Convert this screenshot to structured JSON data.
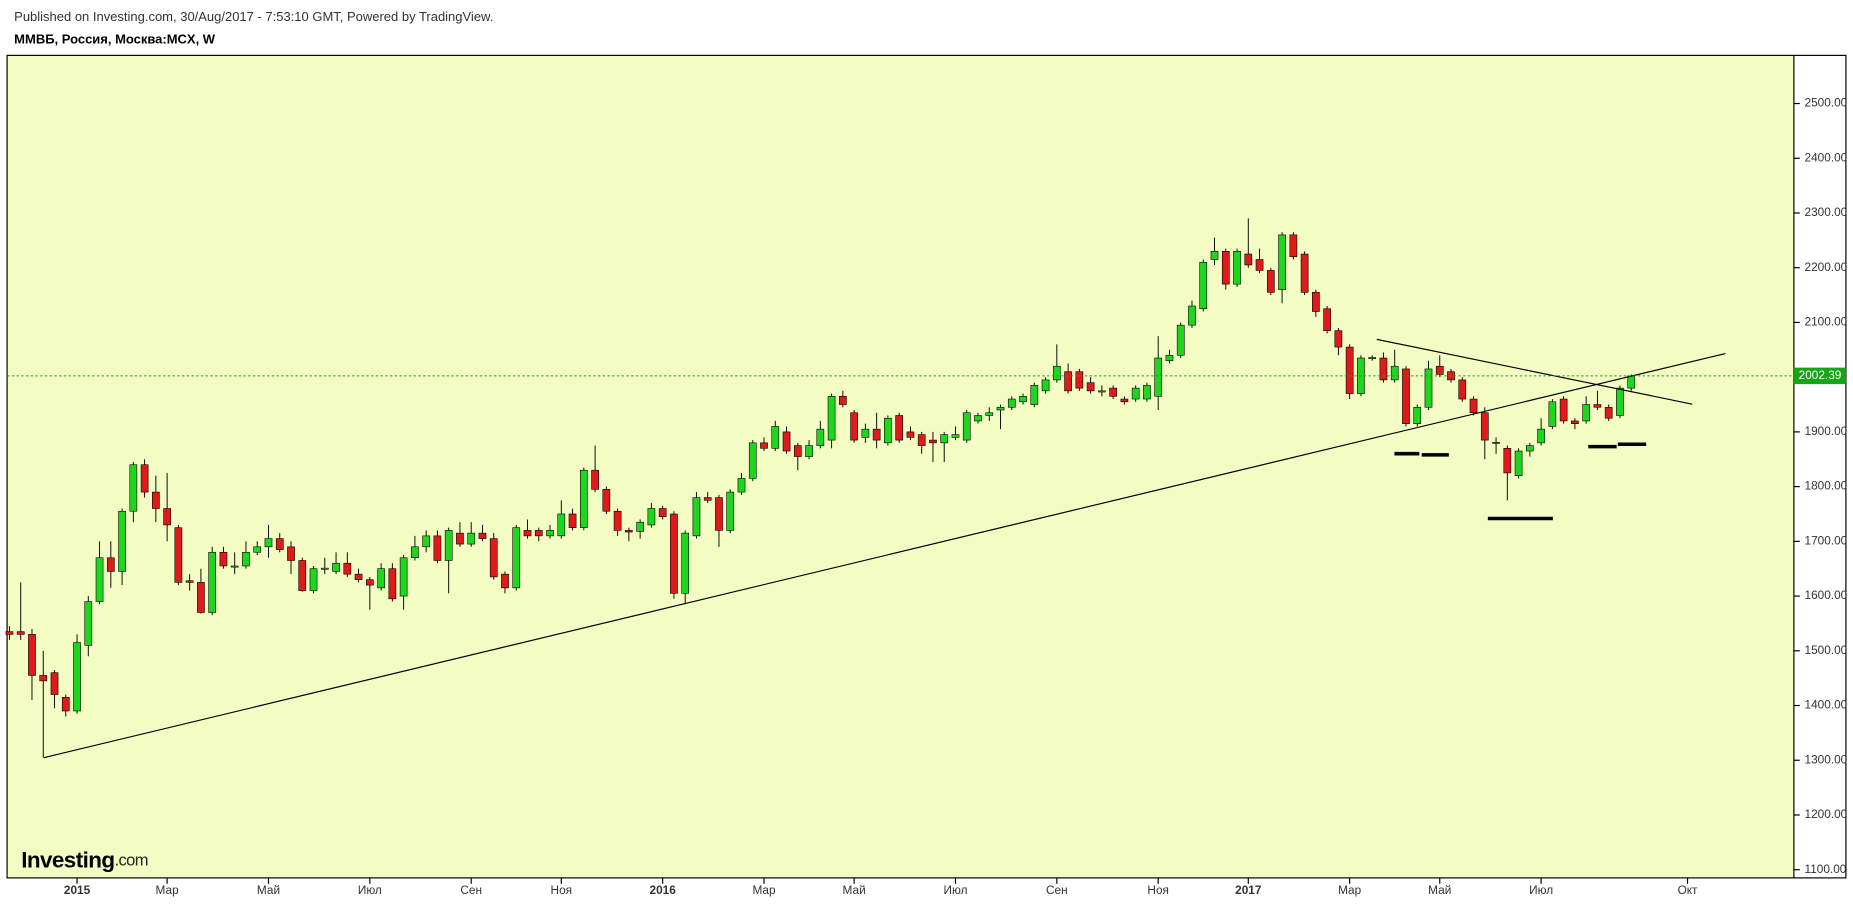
{
  "header": {
    "published": "Published on Investing.com, 30/Aug/2017 - 7:53:10 GMT, Powered by TradingView.",
    "symbol": "ММВБ, Россия, Москва:MCX, W"
  },
  "logo": {
    "brand": "Investing",
    "suffix": ".com"
  },
  "chart_data": {
    "type": "candlestick",
    "categories": [
      null,
      null,
      null,
      null,
      null,
      null,
      "2015",
      null,
      null,
      null,
      null,
      null,
      null,
      null,
      "Мар",
      null,
      null,
      null,
      null,
      null,
      null,
      null,
      null,
      "Май",
      null,
      null,
      null,
      null,
      null,
      null,
      null,
      null,
      "Июл",
      null,
      null,
      null,
      null,
      null,
      null,
      null,
      null,
      "Сен",
      null,
      null,
      null,
      null,
      null,
      null,
      null,
      "Ноя",
      null,
      null,
      null,
      null,
      null,
      null,
      null,
      null,
      "2016",
      null,
      null,
      null,
      null,
      null,
      null,
      null,
      null,
      "Мар",
      null,
      null,
      null,
      null,
      null,
      null,
      null,
      "Май",
      null,
      null,
      null,
      null,
      null,
      null,
      null,
      null,
      "Июл",
      null,
      null,
      null,
      null,
      null,
      null,
      null,
      null,
      "Сен",
      null,
      null,
      null,
      null,
      null,
      null,
      null,
      null,
      "Ноя",
      null,
      null,
      null,
      null,
      null,
      null,
      null,
      "2017",
      null,
      null,
      null,
      null,
      null,
      null,
      null,
      null,
      "Мар",
      null,
      null,
      null,
      null,
      null,
      null,
      null,
      "Май",
      null,
      null,
      null,
      null,
      null,
      null,
      null,
      null,
      "Июл",
      null,
      null,
      null,
      null,
      null,
      null,
      null,
      null,
      null,
      null,
      null,
      null,
      "Окт",
      null,
      null,
      null,
      null,
      null,
      null,
      null,
      null,
      null
    ],
    "open": [
      1535,
      1535,
      1530,
      1455,
      1460,
      1415,
      1390,
      1510,
      1590,
      1670,
      1645,
      1755,
      1840,
      1790,
      1760,
      1725,
      1628,
      1625,
      1570,
      1680,
      1655,
      1655,
      1680,
      1690,
      1705,
      1690,
      1665,
      1610,
      1650,
      1645,
      1660,
      1640,
      1630,
      1615,
      1650,
      1600,
      1670,
      1690,
      1710,
      1665,
      1715,
      1695,
      1715,
      1705,
      1640,
      1615,
      1720,
      1720,
      1710,
      1710,
      1750,
      1725,
      1830,
      1795,
      1755,
      1720,
      1718,
      1730,
      1760,
      1750,
      1605,
      1710,
      1780,
      1780,
      1720,
      1790,
      1815,
      1880,
      1870,
      1900,
      1875,
      1855,
      1875,
      1885,
      1965,
      1935,
      1890,
      1905,
      1880,
      1930,
      1900,
      1895,
      1885,
      1880,
      1890,
      1885,
      1920,
      1930,
      1940,
      1945,
      1955,
      1950,
      1975,
      1995,
      2010,
      2010,
      1990,
      1973,
      1980,
      1960,
      1960,
      1960,
      1965,
      2030,
      2040,
      2095,
      2125,
      2215,
      2230,
      2170,
      2225,
      2215,
      2195,
      2160,
      2260,
      2225,
      2155,
      2125,
      2085,
      2055,
      1970,
      2035,
      2035,
      1995,
      2015,
      1915,
      1945,
      2020,
      2010,
      1995,
      1960,
      1935,
      1880,
      1870,
      1820,
      1865,
      1880,
      1910,
      1960,
      1920,
      1920,
      1950,
      1945,
      1930,
      1980,
      null,
      null,
      null,
      null,
      null,
      null,
      null,
      null,
      null,
      null,
      null,
      null,
      null,
      null
    ],
    "high": [
      1545,
      1625,
      1540,
      1500,
      1465,
      1420,
      1530,
      1600,
      1700,
      1700,
      1760,
      1845,
      1850,
      1820,
      1825,
      1730,
      1640,
      1650,
      1690,
      1690,
      1680,
      1700,
      1700,
      1730,
      1715,
      1700,
      1670,
      1655,
      1670,
      1680,
      1680,
      1650,
      1635,
      1660,
      1660,
      1675,
      1710,
      1720,
      1720,
      1725,
      1735,
      1735,
      1730,
      1715,
      1645,
      1730,
      1740,
      1725,
      1730,
      1775,
      1760,
      1835,
      1875,
      1800,
      1760,
      1725,
      1740,
      1770,
      1765,
      1755,
      1720,
      1790,
      1790,
      1785,
      1795,
      1825,
      1885,
      1890,
      1920,
      1910,
      1880,
      1885,
      1920,
      1970,
      1975,
      1940,
      1915,
      1935,
      1930,
      1935,
      1910,
      1900,
      1900,
      1900,
      1910,
      1940,
      1935,
      1945,
      1950,
      1965,
      1970,
      1990,
      2000,
      2060,
      2025,
      2015,
      2000,
      1985,
      1985,
      1965,
      1985,
      1990,
      2075,
      2050,
      2100,
      2140,
      2215,
      2255,
      2235,
      2235,
      2290,
      2235,
      2200,
      2265,
      2265,
      2230,
      2160,
      2130,
      2090,
      2060,
      2040,
      2040,
      2045,
      2050,
      2020,
      1950,
      2030,
      2040,
      2015,
      2000,
      1965,
      1945,
      1890,
      1875,
      1870,
      1880,
      1925,
      1960,
      1965,
      1925,
      1965,
      1975,
      1950,
      1985,
      2005,
      null,
      null,
      null,
      null,
      null,
      null,
      null,
      null,
      null,
      null,
      null,
      null,
      null,
      null
    ],
    "low": [
      1520,
      1520,
      1410,
      1305,
      1395,
      1380,
      1385,
      1490,
      1585,
      1615,
      1620,
      1735,
      1780,
      1735,
      1700,
      1620,
      1610,
      1568,
      1565,
      1650,
      1640,
      1650,
      1675,
      1670,
      1680,
      1640,
      1608,
      1605,
      1640,
      1640,
      1635,
      1625,
      1575,
      1610,
      1590,
      1575,
      1665,
      1680,
      1660,
      1605,
      1690,
      1690,
      1700,
      1630,
      1605,
      1610,
      1705,
      1700,
      1705,
      1705,
      1720,
      1720,
      1790,
      1750,
      1710,
      1700,
      1705,
      1725,
      1740,
      1595,
      1585,
      1705,
      1770,
      1690,
      1715,
      1785,
      1810,
      1865,
      1865,
      1860,
      1830,
      1850,
      1870,
      1870,
      1945,
      1880,
      1880,
      1870,
      1875,
      1880,
      1885,
      1860,
      1845,
      1845,
      1885,
      1880,
      1915,
      1920,
      1905,
      1940,
      1950,
      1945,
      1970,
      1990,
      1970,
      1975,
      1970,
      1965,
      1960,
      1950,
      1955,
      1955,
      1940,
      2025,
      2035,
      2090,
      2120,
      2205,
      2160,
      2165,
      2200,
      2190,
      2150,
      2135,
      2215,
      2150,
      2110,
      2080,
      2040,
      1960,
      1965,
      2030,
      1990,
      1990,
      1910,
      1910,
      1940,
      2000,
      1990,
      1955,
      1930,
      1850,
      1860,
      1775,
      1815,
      1855,
      1875,
      1905,
      1915,
      1905,
      1915,
      1940,
      1920,
      1925,
      1975,
      null,
      null,
      null,
      null,
      null,
      null,
      null,
      null,
      null,
      null,
      null,
      null,
      null,
      null
    ],
    "close": [
      1530,
      1530,
      1455,
      1445,
      1420,
      1390,
      1515,
      1590,
      1670,
      1645,
      1755,
      1840,
      1790,
      1760,
      1730,
      1625,
      1625,
      1570,
      1680,
      1655,
      1655,
      1680,
      1690,
      1705,
      1685,
      1665,
      1610,
      1650,
      1651,
      1660,
      1640,
      1630,
      1620,
      1650,
      1595,
      1670,
      1690,
      1710,
      1665,
      1720,
      1695,
      1715,
      1705,
      1635,
      1615,
      1725,
      1710,
      1710,
      1720,
      1750,
      1725,
      1830,
      1795,
      1755,
      1720,
      1717,
      1735,
      1760,
      1745,
      1605,
      1715,
      1780,
      1775,
      1720,
      1790,
      1815,
      1880,
      1870,
      1910,
      1865,
      1855,
      1875,
      1905,
      1965,
      1950,
      1885,
      1905,
      1885,
      1925,
      1885,
      1890,
      1875,
      1880,
      1895,
      1895,
      1935,
      1930,
      1935,
      1945,
      1960,
      1965,
      1985,
      1995,
      2020,
      1975,
      1980,
      1975,
      1975,
      1965,
      1955,
      1980,
      1985,
      2035,
      2040,
      2095,
      2130,
      2210,
      2230,
      2170,
      2230,
      2205,
      2195,
      2155,
      2260,
      2220,
      2155,
      2120,
      2085,
      2055,
      1970,
      2035,
      2036,
      1995,
      2020,
      1915,
      1945,
      2015,
      2005,
      1995,
      1960,
      1935,
      1885,
      1881,
      1825,
      1865,
      1875,
      1905,
      1955,
      1920,
      1915,
      1950,
      1945,
      1925,
      1980,
      2002.39,
      null,
      null,
      null,
      null,
      null,
      null,
      null,
      null,
      null,
      null,
      null,
      null,
      null,
      null
    ],
    "up_color": "#1ed61e",
    "down_color": "#e01a1a",
    "background": "#f3fdc3",
    "ylim": [
      1085,
      2588
    ],
    "yticks": [
      {
        "value": 1100,
        "label": "1100.00"
      },
      {
        "value": 1200,
        "label": "1200.00"
      },
      {
        "value": 1300,
        "label": "1300.00"
      },
      {
        "value": 1400,
        "label": "1400.00"
      },
      {
        "value": 1500,
        "label": "1500.00"
      },
      {
        "value": 1600,
        "label": "1600.00"
      },
      {
        "value": 1700,
        "label": "1700.00"
      },
      {
        "value": 1800,
        "label": "1800.00"
      },
      {
        "value": 1900,
        "label": "1900.00"
      },
      {
        "value": 2000,
        "label": "2000.00"
      },
      {
        "value": 2100,
        "label": "2100.00"
      },
      {
        "value": 2200,
        "label": "2200.00"
      },
      {
        "value": 2300,
        "label": "2300.00"
      },
      {
        "value": 2400,
        "label": "2400.00"
      },
      {
        "value": 2500,
        "label": "2500.00"
      }
    ],
    "last_price": 2002.39,
    "last_price_color": "#16a516"
  }
}
